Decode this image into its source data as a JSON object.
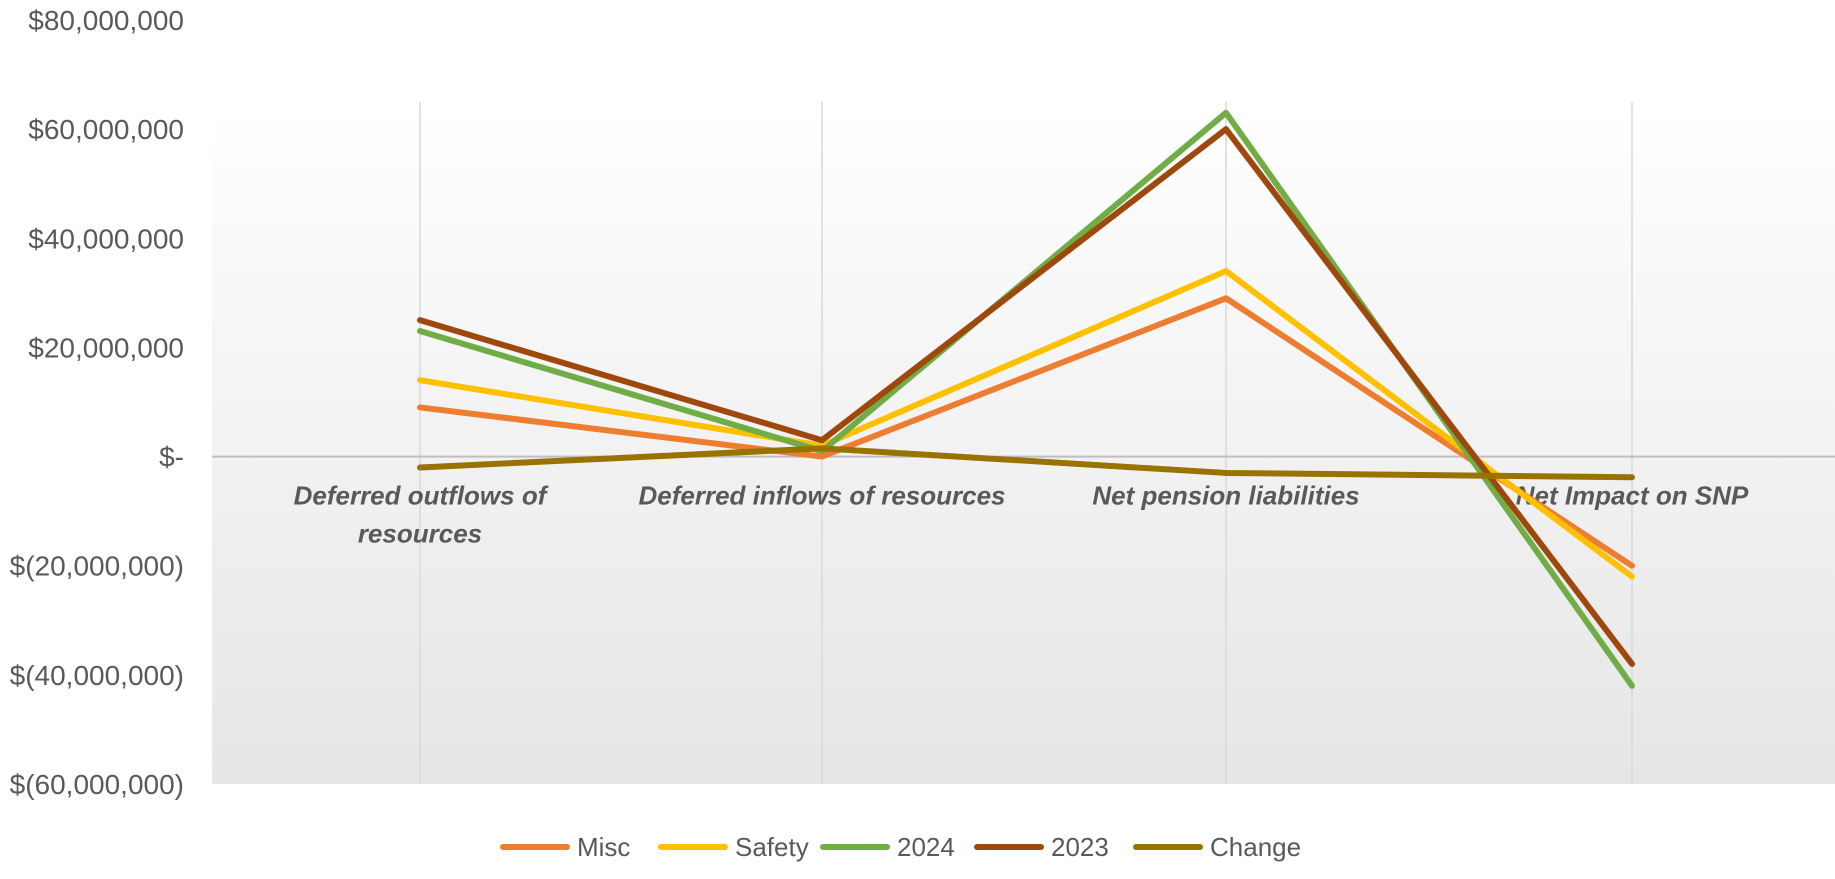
{
  "chart_data": {
    "type": "line",
    "categories": [
      [
        "Deferred outflows of",
        "resources"
      ],
      [
        "Deferred inflows of resources"
      ],
      [
        "Net pension liabilities"
      ],
      [
        "Net Impact on SNP"
      ]
    ],
    "y_ticks": [
      "$80,000,000",
      "$60,000,000",
      "$40,000,000",
      "$20,000,000",
      "$-",
      "$(20,000,000)",
      "$(40,000,000)",
      "$(60,000,000)"
    ],
    "ylim": [
      -60000000,
      80000000
    ],
    "plot_ylim": [
      -60000000,
      65000000
    ],
    "grid": "vertical gridlines at categories",
    "legend_position": "bottom",
    "series": [
      {
        "name": "Misc",
        "color": "#ED7D31",
        "values": [
          9000000,
          0,
          29000000,
          -20000000
        ]
      },
      {
        "name": "Safety",
        "color": "#FFC000",
        "values": [
          14000000,
          2000000,
          34000000,
          -22000000
        ]
      },
      {
        "name": "2024",
        "color": "#70AD47",
        "values": [
          23000000,
          1000000,
          63000000,
          -42000000
        ]
      },
      {
        "name": "2023",
        "color": "#9E480E",
        "values": [
          25000000,
          3000000,
          60000000,
          -38000000
        ]
      },
      {
        "name": "Change",
        "color": "#997300",
        "values": [
          -2000000,
          1500000,
          -3000000,
          -3800000
        ]
      }
    ]
  }
}
